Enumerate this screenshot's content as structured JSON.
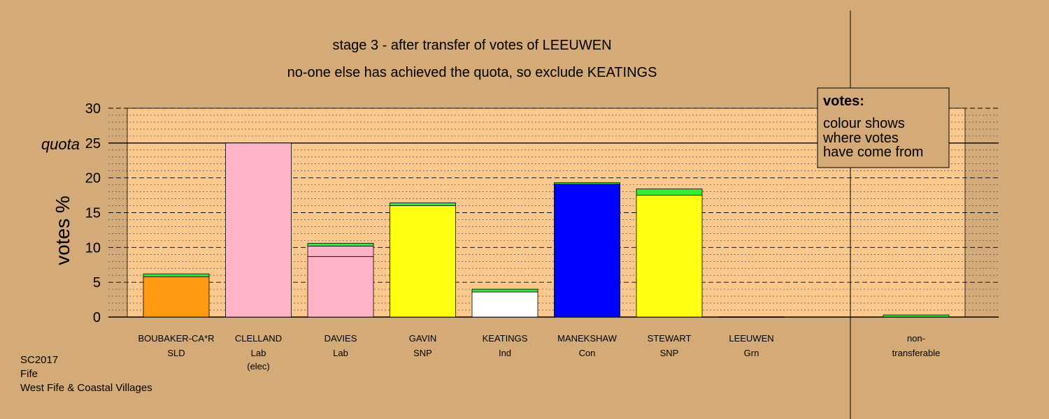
{
  "colors": {
    "background": "#d4aa78",
    "plot_area": "#fac88c",
    "legend_box": "#d4aa78",
    "transfer_green": "#33ee33"
  },
  "chart_data": {
    "type": "bar",
    "stacked": true,
    "title_lines": [
      "stage 3 - after transfer of votes of LEEUWEN",
      "no-one else has achieved the quota, so exclude KEATINGS"
    ],
    "ylabel": "votes %",
    "ylim": [
      0,
      30
    ],
    "yticks": [
      0,
      5,
      10,
      15,
      20,
      25,
      30
    ],
    "quota": 25,
    "quota_label": "quota",
    "grid": true,
    "legend_position": "top-right",
    "legend": {
      "title": "votes:",
      "lines": [
        "colour shows",
        "where votes",
        "have come from"
      ]
    },
    "candidates": [
      {
        "name": "BOUBAKER-CA*R",
        "party": "SLD",
        "note": "",
        "segments": [
          {
            "value": 5.8,
            "color": "#ff9911"
          },
          {
            "value": 0.4,
            "color": "#33ee33"
          }
        ]
      },
      {
        "name": "CLELLAND",
        "party": "Lab",
        "note": "(elec)",
        "segments": [
          {
            "value": 25.0,
            "color": "#ffb3c6"
          }
        ]
      },
      {
        "name": "DAVIES",
        "party": "Lab",
        "note": "",
        "segments": [
          {
            "value": 8.7,
            "color": "#ffb3c6"
          },
          {
            "value": 1.5,
            "color": "#ffb3c6"
          },
          {
            "value": 0.4,
            "color": "#33ee33"
          }
        ]
      },
      {
        "name": "GAVIN",
        "party": "SNP",
        "note": "",
        "segments": [
          {
            "value": 16.0,
            "color": "#ffff11"
          },
          {
            "value": 0.4,
            "color": "#33ee33"
          }
        ]
      },
      {
        "name": "KEATINGS",
        "party": "Ind",
        "note": "",
        "segments": [
          {
            "value": 3.6,
            "color": "#ffffff"
          },
          {
            "value": 0.4,
            "color": "#33ee33"
          }
        ]
      },
      {
        "name": "MANEKSHAW",
        "party": "Con",
        "note": "",
        "segments": [
          {
            "value": 19.1,
            "color": "#0000ff"
          },
          {
            "value": 0.2,
            "color": "#33ee33"
          }
        ]
      },
      {
        "name": "STEWART",
        "party": "SNP",
        "note": "",
        "segments": [
          {
            "value": 17.5,
            "color": "#ffff11"
          },
          {
            "value": 0.9,
            "color": "#33ee33"
          }
        ]
      },
      {
        "name": "LEEUWEN",
        "party": "Grn",
        "note": "",
        "segments": []
      }
    ],
    "nontransferable": {
      "label_lines": [
        "non-",
        "transferable"
      ],
      "segments": [
        {
          "value": 0.3,
          "color": "#33ee33"
        }
      ]
    }
  },
  "footer": {
    "line1": "SC2017",
    "line2": "Fife",
    "line3": "West Fife & Coastal Villages"
  }
}
